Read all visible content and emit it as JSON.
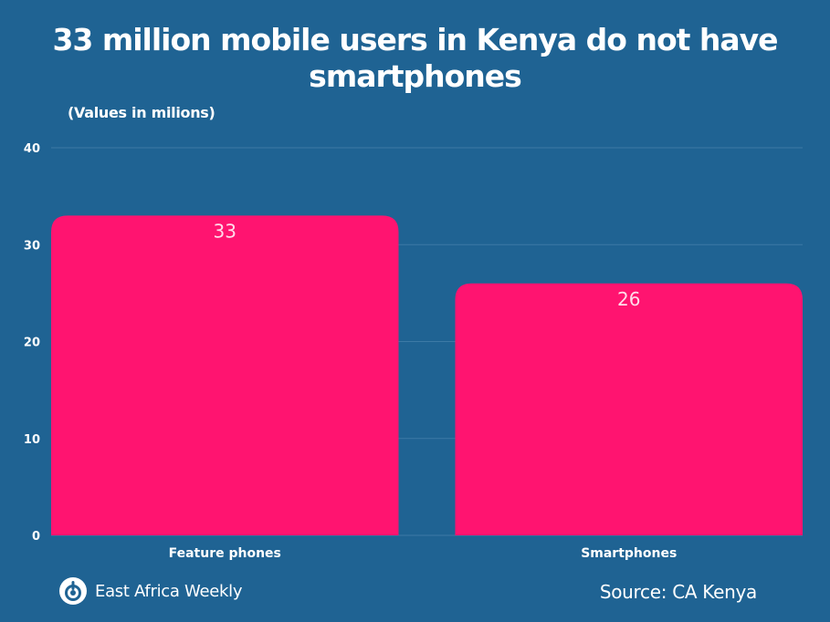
{
  "chart_data": {
    "type": "bar",
    "title": "33 million mobile users in Kenya do not have smartphones",
    "subtitle": "(Values in milions)",
    "categories": [
      "Feature phones",
      "Smartphones"
    ],
    "values": [
      33,
      26
    ],
    "value_labels": [
      "33",
      "26"
    ],
    "ylim": [
      0,
      40
    ],
    "yticks": [
      0,
      10,
      20,
      30,
      40
    ],
    "ytick_labels": [
      "0",
      "10",
      "20",
      "30",
      "40"
    ],
    "xlabel": "",
    "ylabel": "",
    "grid": true,
    "bar_color": "#ff1470",
    "background_color": "#1f6393",
    "grid_color": "#3d7aa6"
  },
  "branding": {
    "logo_text": "East Africa Weekly",
    "logo_icon": "pin-circle-icon"
  },
  "footer": {
    "source": "Source: CA Kenya"
  }
}
